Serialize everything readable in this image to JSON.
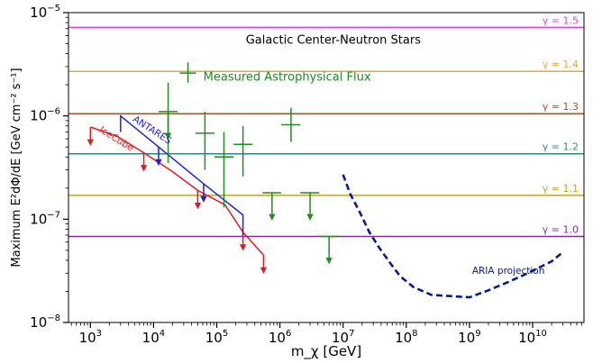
{
  "chart_data": {
    "type": "line",
    "xlabel": "m_χ [GeV]",
    "ylabel": "Maximum E²dΦ/dE [GeV cm⁻² s⁻¹]",
    "xscale": "log",
    "yscale": "log",
    "xlim": [
      450.0,
      65000000000.0
    ],
    "ylim": [
      1e-08,
      1e-05
    ],
    "x_ticks": [
      {
        "value": 1000.0,
        "mant": "10",
        "exp": "3"
      },
      {
        "value": 10000.0,
        "mant": "10",
        "exp": "4"
      },
      {
        "value": 100000.0,
        "mant": "10",
        "exp": "5"
      },
      {
        "value": 1000000.0,
        "mant": "10",
        "exp": "6"
      },
      {
        "value": 10000000.0,
        "mant": "10",
        "exp": "7"
      },
      {
        "value": 100000000.0,
        "mant": "10",
        "exp": "8"
      },
      {
        "value": 1000000000.0,
        "mant": "10",
        "exp": "9"
      },
      {
        "value": 10000000000.0,
        "mant": "10",
        "exp": "10"
      }
    ],
    "y_ticks": [
      {
        "value": 1e-08,
        "mant": "10",
        "exp": "−8"
      },
      {
        "value": 1e-07,
        "mant": "10",
        "exp": "−7"
      },
      {
        "value": 1e-06,
        "mant": "10",
        "exp": "−6"
      },
      {
        "value": 1e-05,
        "mant": "10",
        "exp": "−5"
      }
    ],
    "gamma_lines": [
      {
        "label": "γ = 1.5",
        "y": 7.2e-06,
        "color": "#e040e0"
      },
      {
        "label": "γ = 1.4",
        "y": 2.7e-06,
        "color": "#e6a93a"
      },
      {
        "label": "γ = 1.3",
        "y": 1.05e-06,
        "color": "#a0522d"
      },
      {
        "label": "γ = 1.2",
        "y": 4.3e-07,
        "color": "#2a8a8a"
      },
      {
        "label": "γ = 1.1",
        "y": 1.7e-07,
        "color": "#c8a020"
      },
      {
        "label": "γ = 1.0",
        "y": 6.8e-08,
        "color": "#8a2a9a"
      }
    ],
    "annotations": [
      {
        "text": "Galactic Center-Neutron Stars",
        "x": 7000000.0,
        "y": 5e-06,
        "color": "#000000"
      },
      {
        "text": "Measured Astrophysical Flux",
        "x": 1300000.0,
        "y": 2.2e-06,
        "color": "#228B22"
      }
    ],
    "series": [
      {
        "name": "IceCube",
        "color": "#e31a1c",
        "x": [
          1000.0,
          2700.0,
          7000.0,
          19000.0,
          50000.0,
          135000.0,
          260000.0,
          550000.0
        ],
        "y": [
          7.8e-07,
          6.3e-07,
          4.4e-07,
          2.95e-07,
          1.9e-07,
          1.38e-07,
          7.5e-08,
          4.5e-08
        ],
        "limit_arrows": [
          {
            "x": 1000.0,
            "y": 7.8e-07
          },
          {
            "x": 7000.0,
            "y": 4.4e-07
          },
          {
            "x": 50000.0,
            "y": 1.9e-07
          },
          {
            "x": 260000.0,
            "y": 7.5e-08
          },
          {
            "x": 550000.0,
            "y": 4.5e-08
          }
        ]
      },
      {
        "name": "ANTARES",
        "color": "#1f1fe0",
        "x": [
          3000.0,
          3000.0,
          12000.0,
          62000.0,
          260000.0,
          260000.0
        ],
        "y": [
          7e-07,
          1e-06,
          5e-07,
          2.2e-07,
          1.1e-07,
          7e-08
        ],
        "limit_arrows": [
          {
            "x": 12000.0,
            "y": 5e-07
          },
          {
            "x": 62000.0,
            "y": 2.2e-07
          }
        ]
      },
      {
        "name": "ARIA projection",
        "color": "#0a1a8c",
        "dashed": true,
        "x": [
          10000000.0,
          13000000.0,
          18000000.0,
          26000000.0,
          38000000.0,
          55000000.0,
          80000000.0,
          130000000.0,
          250000000.0,
          500000000.0,
          1000000000.0,
          2000000000.0,
          4000000000.0,
          7000000000.0,
          12000000000.0,
          20000000000.0,
          30000000000.0
        ],
        "y": [
          2.7e-07,
          1.75e-07,
          1.2e-07,
          7.5e-08,
          5.2e-08,
          3.8e-08,
          2.8e-08,
          2.2e-08,
          1.85e-08,
          1.8e-08,
          1.75e-08,
          2.05e-08,
          2.45e-08,
          2.85e-08,
          3.35e-08,
          3.9e-08,
          4.8e-08
        ]
      },
      {
        "name": "Measured Astrophysical Flux",
        "color": "#228B22",
        "points": [
          {
            "x": 35000.0,
            "y": 2.6e-06,
            "xerr": [
              26000.0,
              47000.0
            ],
            "yerr": [
              2.1e-06,
              3.3e-06
            ]
          },
          {
            "x": 17000.0,
            "y": 1.1e-06,
            "xerr": [
              12000.0,
              24000.0
            ],
            "yerr": [
              3.5e-07,
              2.1e-06
            ],
            "upper_limit": true
          },
          {
            "x": 65000.0,
            "y": 6.8e-07,
            "xerr": [
              46000.0,
              92000.0
            ],
            "yerr": [
              3e-07,
              1.1e-06
            ]
          },
          {
            "x": 130000.0,
            "y": 4e-07,
            "xerr": [
              92000.0,
              185000.0
            ],
            "yerr": [
              1.3e-07,
              7e-07
            ]
          },
          {
            "x": 260000.0,
            "y": 5.3e-07,
            "xerr": [
              185000.0,
              370000.0
            ],
            "yerr": [
              2.6e-07,
              8e-07
            ]
          },
          {
            "x": 750000.0,
            "y": 1.8e-07,
            "xerr": [
              530000.0,
              1050000.0
            ],
            "upper_limit": true
          },
          {
            "x": 1500000.0,
            "y": 8.2e-07,
            "xerr": [
              1050000.0,
              2100000.0
            ],
            "yerr": [
              5.6e-07,
              1.2e-06
            ]
          },
          {
            "x": 3000000.0,
            "y": 1.8e-07,
            "xerr": [
              2100000.0,
              4200000.0
            ],
            "upper_limit": true
          },
          {
            "x": 6000000.0,
            "y": 6.8e-08,
            "xerr": [
              4200000.0,
              8500000.0
            ],
            "upper_limit": true
          }
        ]
      }
    ],
    "series_labels": [
      {
        "text": "IceCube",
        "x": 1350.0,
        "y": 7.1e-07,
        "angle": 32,
        "color": "#e31a1c"
      },
      {
        "text": "ANTARES",
        "x": 4600.0,
        "y": 9e-07,
        "angle": 33,
        "color": "#1f1fe0"
      },
      {
        "text": "ARIA projection",
        "x": 1100000000.0,
        "y": 2.95e-08,
        "angle": 0,
        "color": "#0a1a8c"
      }
    ]
  }
}
